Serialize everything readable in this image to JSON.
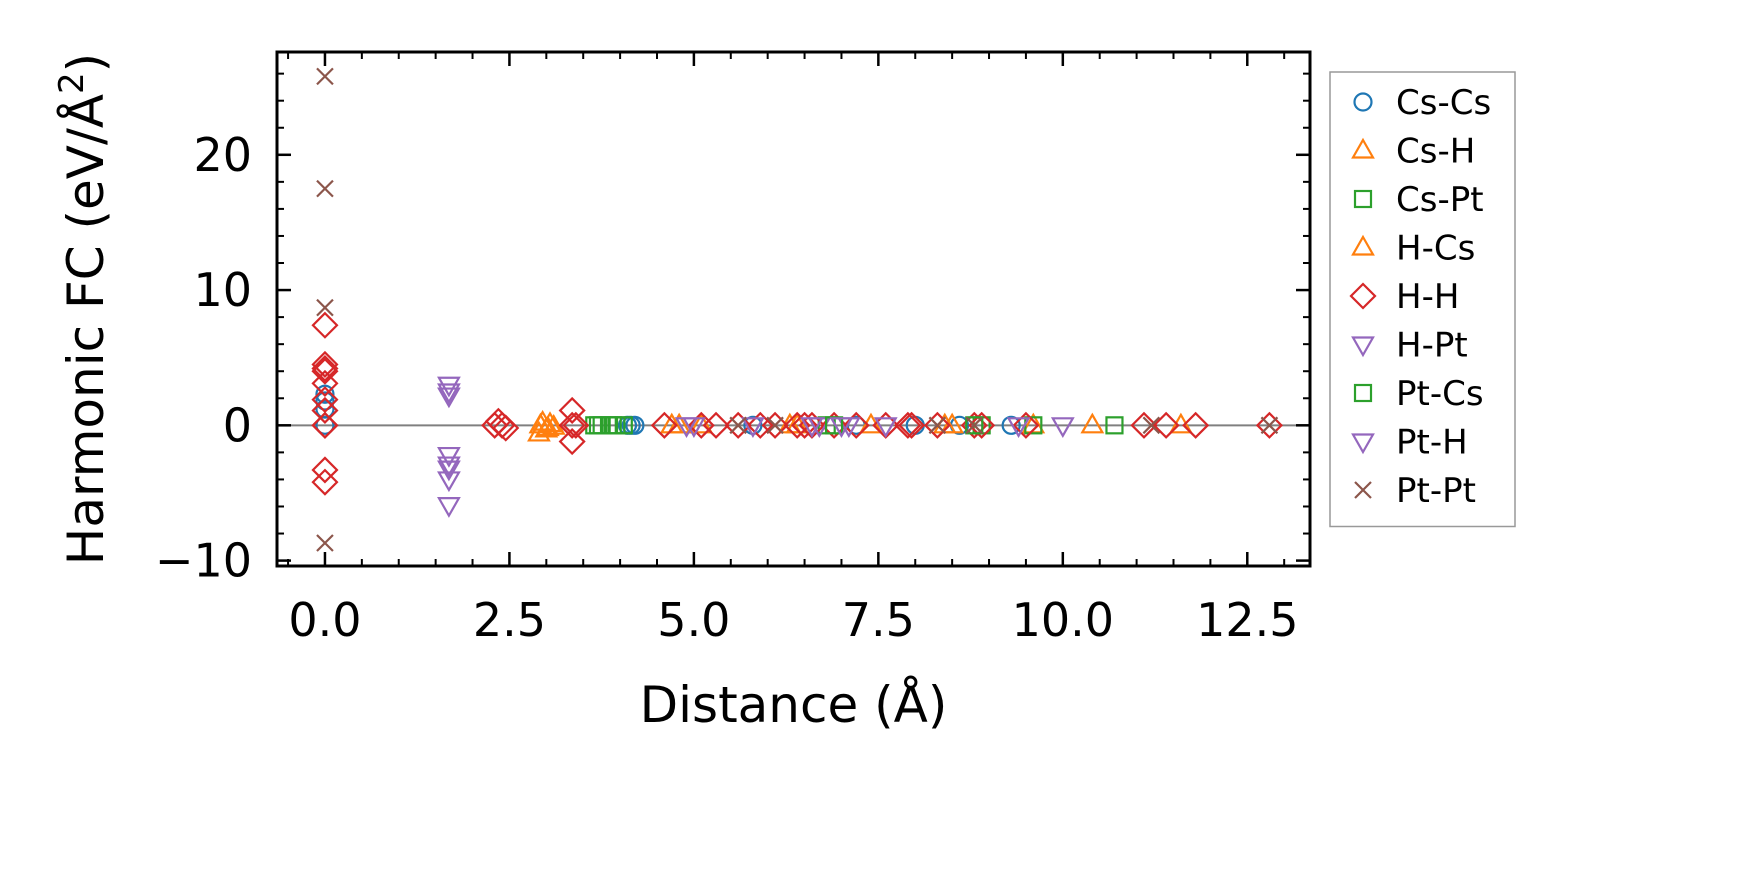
{
  "chart_data": {
    "type": "scatter",
    "title": "",
    "xlabel": "Distance (Å)",
    "ylabel_main": "Harmonic FC (eV/Å",
    "ylabel_sup": "2",
    "ylabel_close": ")",
    "xlim": [
      -0.65,
      13.35
    ],
    "ylim": [
      -10.4,
      27.6
    ],
    "xticks": [
      0.0,
      2.5,
      5.0,
      7.5,
      10.0,
      12.5
    ],
    "xtick_labels": [
      "0.0",
      "2.5",
      "5.0",
      "7.5",
      "10.0",
      "12.5"
    ],
    "yticks": [
      -10,
      0,
      10,
      20
    ],
    "ytick_labels": [
      "−10",
      "0",
      "10",
      "20"
    ],
    "zero_line": 0,
    "legend_position": "right-outside",
    "series": [
      {
        "name": "Cs-Cs",
        "marker": "circle",
        "color": "#1f77b4",
        "x": [
          0.0,
          0.0,
          0.0,
          0.0,
          4.1,
          4.15,
          4.2,
          5.8,
          7.2,
          8.0,
          8.6,
          9.3
        ],
        "y": [
          2.3,
          1.8,
          1.2,
          0.0,
          0.0,
          0.0,
          0.0,
          0.0,
          0.0,
          0.0,
          0.0,
          0.0
        ]
      },
      {
        "name": "Cs-H",
        "marker": "triangle-up",
        "color": "#ff7f0e",
        "x": [
          2.9,
          2.95,
          3.0,
          3.05,
          3.1,
          4.7,
          5.1,
          6.4,
          7.4,
          8.5,
          9.6,
          10.4,
          11.6
        ],
        "y": [
          -0.6,
          0.2,
          -0.3,
          0.1,
          -0.1,
          0.0,
          0.0,
          0.0,
          0.0,
          0.0,
          0.0,
          0.0,
          0.0
        ]
      },
      {
        "name": "Cs-Pt",
        "marker": "square",
        "color": "#2ca02c",
        "x": [
          3.65,
          3.75,
          3.85,
          3.95,
          4.05,
          6.8,
          8.9,
          9.6,
          10.7
        ],
        "y": [
          0.0,
          0.0,
          0.0,
          0.0,
          0.0,
          0.0,
          0.0,
          0.0,
          0.0
        ]
      },
      {
        "name": "H-Cs",
        "marker": "triangle-up",
        "color": "#ff7f0e",
        "x": [
          2.92,
          3.02,
          4.8,
          6.3,
          8.4
        ],
        "y": [
          0.0,
          -0.2,
          0.0,
          0.0,
          0.0
        ]
      },
      {
        "name": "H-H",
        "marker": "diamond",
        "color": "#d62728",
        "x": [
          0.0,
          0.0,
          0.0,
          0.0,
          0.0,
          0.0,
          0.0,
          0.0,
          0.0,
          0.0,
          0.0,
          2.3,
          2.35,
          2.4,
          2.45,
          3.35,
          3.35,
          3.35,
          3.4,
          4.6,
          5.1,
          5.3,
          5.6,
          5.9,
          6.1,
          6.4,
          6.5,
          6.6,
          6.9,
          7.2,
          7.6,
          7.9,
          7.95,
          8.3,
          8.8,
          8.9,
          9.5,
          11.1,
          11.4,
          11.8,
          12.8
        ],
        "y": [
          7.4,
          4.5,
          4.2,
          4.0,
          3.1,
          1.9,
          1.1,
          -3.3,
          -4.2,
          0.0,
          0.0,
          0.0,
          0.3,
          0.0,
          -0.2,
          1.1,
          0.0,
          -1.2,
          0.0,
          0.0,
          0.0,
          0.0,
          0.0,
          0.0,
          0.0,
          0.0,
          0.0,
          0.0,
          0.0,
          0.0,
          0.0,
          0.0,
          0.0,
          0.0,
          0.0,
          0.0,
          0.0,
          0.0,
          0.0,
          0.0,
          0.0
        ]
      },
      {
        "name": "H-Pt",
        "marker": "triangle-down",
        "color": "#9467bd",
        "x": [
          1.68,
          1.68,
          1.68,
          1.68,
          1.68,
          1.68,
          4.9,
          5.8,
          6.7,
          7.1,
          7.6,
          9.4,
          10.0
        ],
        "y": [
          3.0,
          2.5,
          -2.2,
          -2.9,
          -4.0,
          -5.9,
          0.0,
          0.0,
          0.0,
          0.0,
          0.0,
          0.0,
          0.0
        ]
      },
      {
        "name": "Pt-Cs",
        "marker": "square",
        "color": "#2ca02c",
        "x": [
          3.7,
          3.9,
          6.9,
          8.8
        ],
        "y": [
          0.0,
          0.0,
          0.0,
          0.0
        ]
      },
      {
        "name": "Pt-H",
        "marker": "triangle-down",
        "color": "#9467bd",
        "x": [
          1.68,
          1.68,
          5.0,
          6.6,
          7.0
        ],
        "y": [
          2.2,
          -3.2,
          0.0,
          0.0,
          0.0
        ]
      },
      {
        "name": "Pt-Pt",
        "marker": "x",
        "color": "#8c564b",
        "x": [
          0.0,
          0.0,
          0.0,
          0.0,
          5.6,
          6.1,
          8.3,
          8.8,
          11.2,
          12.8
        ],
        "y": [
          25.8,
          17.5,
          8.7,
          -8.7,
          0.0,
          0.0,
          0.0,
          0.0,
          0.0,
          0.0
        ]
      }
    ]
  }
}
